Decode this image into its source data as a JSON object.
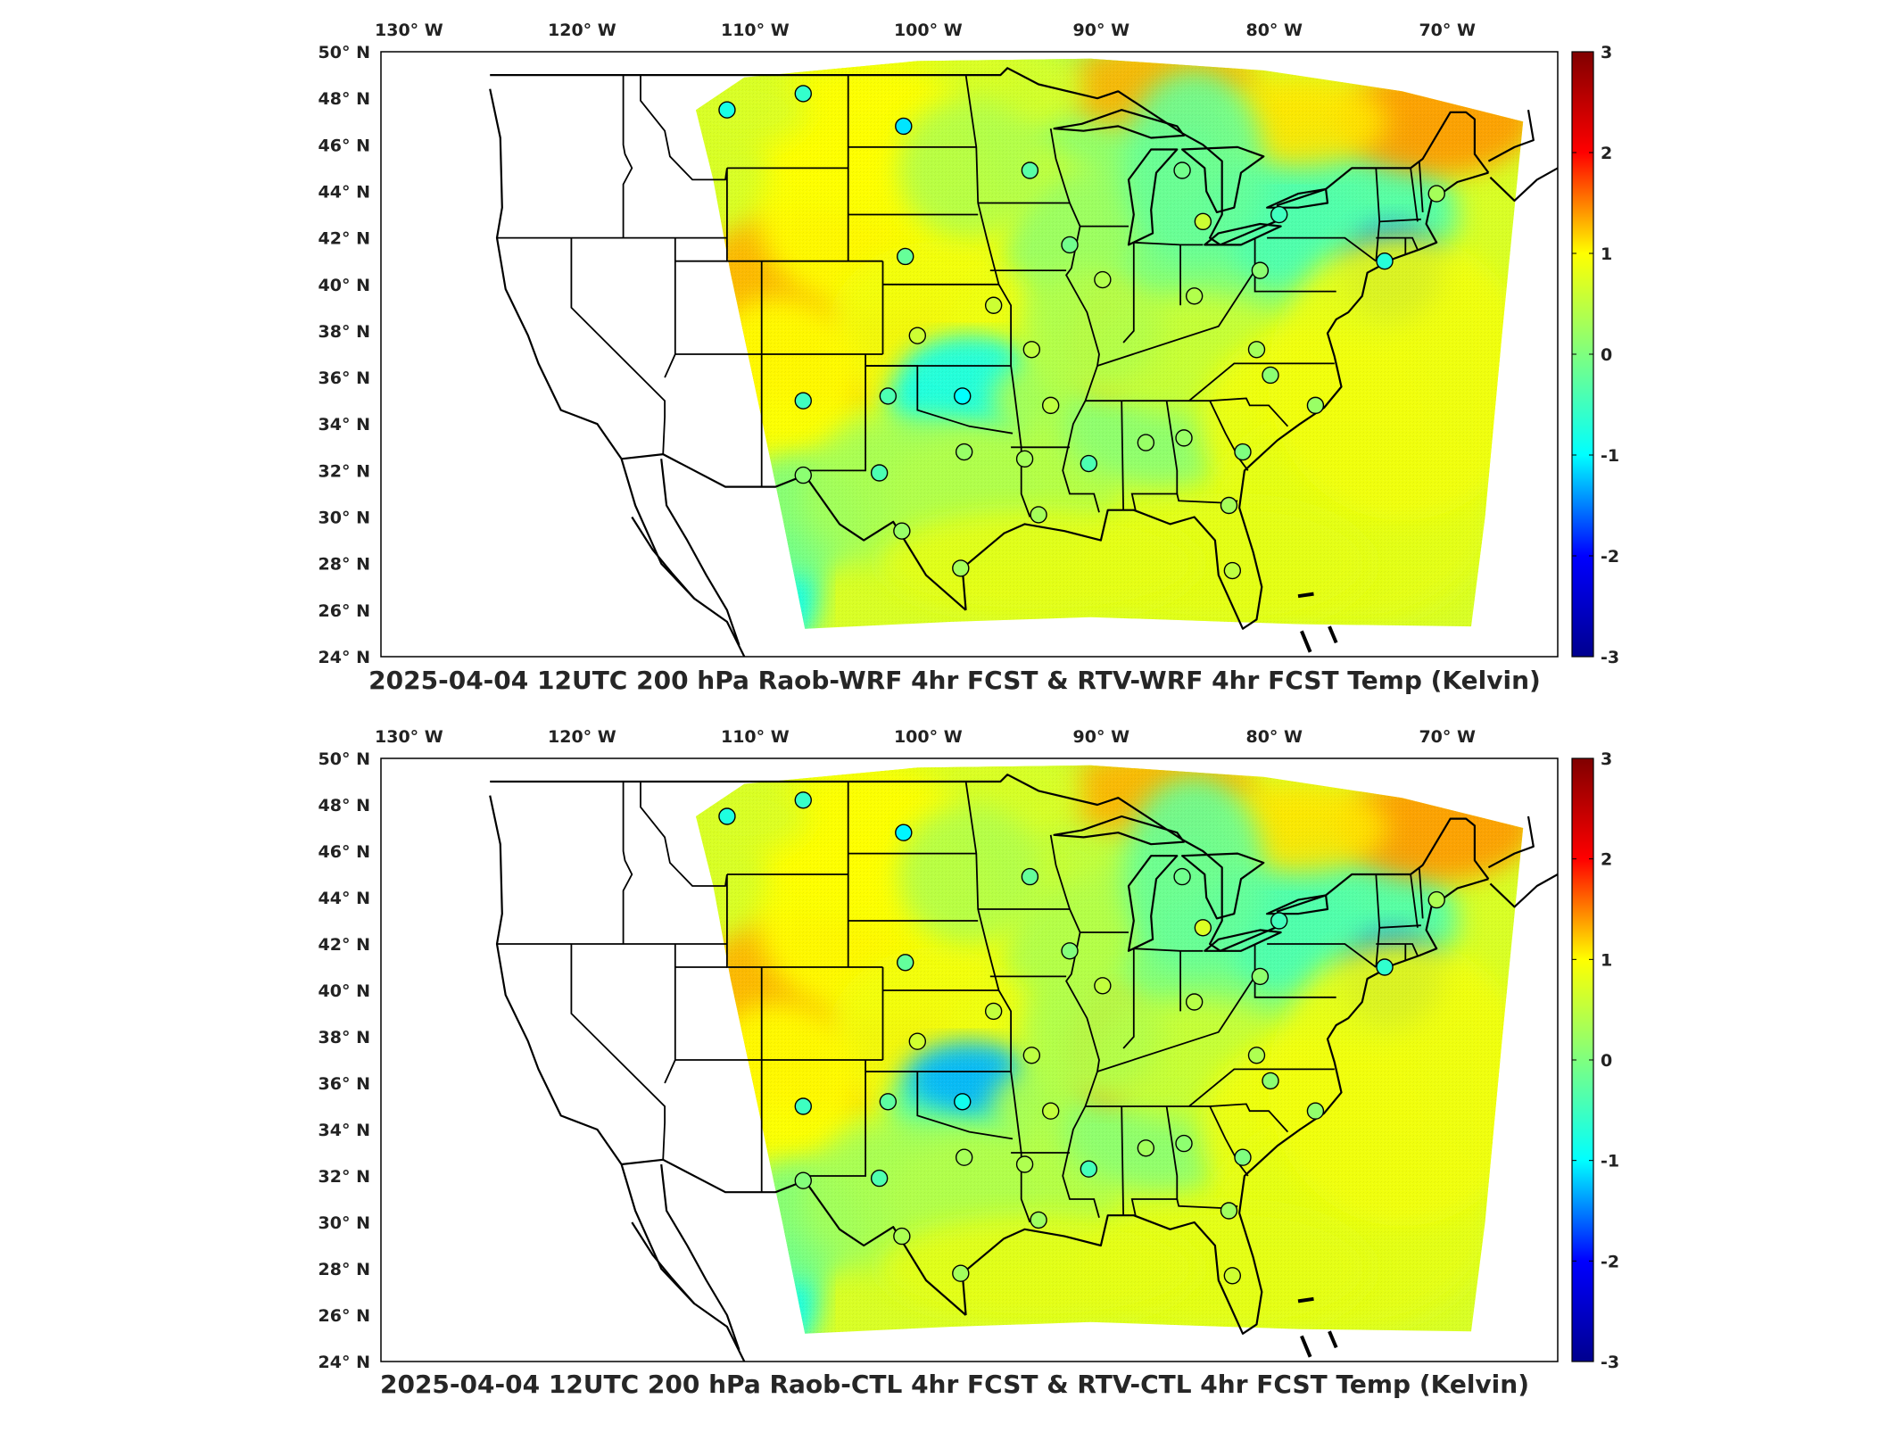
{
  "panels": [
    {
      "title": "2025-04-04 12UTC 200 hPa Raob-WRF 4hr FCST & RTV-WRF 4hr FCST Temp (Kelvin)",
      "variant": "wrf"
    },
    {
      "title": "2025-04-04 12UTC 200 hPa Raob-CTL 4hr FCST & RTV-CTL 4hr FCST Temp (Kelvin)",
      "variant": "ctl"
    }
  ],
  "axes": {
    "lon_labels": [
      "130° W",
      "120° W",
      "110° W",
      "100° W",
      "90° W",
      "80° W",
      "70° W"
    ],
    "lon_values": [
      -130,
      -120,
      -110,
      -100,
      -90,
      -80,
      -70
    ],
    "lat_labels": [
      "50° N",
      "48° N",
      "46° N",
      "44° N",
      "42° N",
      "40° N",
      "38° N",
      "36° N",
      "34° N",
      "32° N",
      "30° N",
      "28° N",
      "26° N",
      "24° N"
    ],
    "lat_values": [
      50,
      48,
      46,
      44,
      42,
      40,
      38,
      36,
      34,
      32,
      30,
      28,
      26,
      24
    ],
    "lon_range": [
      -131,
      -63
    ],
    "lat_range": [
      24,
      50
    ]
  },
  "colorbar": {
    "ticks": [
      "3",
      "2",
      "1",
      "0",
      "-1",
      "-2",
      "-3"
    ],
    "range": [
      -3,
      3
    ],
    "colormap": "jet",
    "stops": [
      "#00008f",
      "#0000ff",
      "#00ffff",
      "#7fff7f",
      "#ffff00",
      "#ff0000",
      "#800000"
    ]
  },
  "stations": [
    {
      "lon": -111.0,
      "lat": 47.5,
      "v": -0.8
    },
    {
      "lon": -106.6,
      "lat": 48.2,
      "v": -0.6
    },
    {
      "lon": -100.8,
      "lat": 46.8,
      "v": -1.1
    },
    {
      "lon": -93.5,
      "lat": 44.9,
      "v": -0.3
    },
    {
      "lon": -84.7,
      "lat": 44.9,
      "v": -0.1
    },
    {
      "lon": -83.5,
      "lat": 42.7,
      "v": 0.6
    },
    {
      "lon": -79.1,
      "lat": 43.0,
      "v": -0.5
    },
    {
      "lon": -70.0,
      "lat": 43.9,
      "v": 0.3
    },
    {
      "lon": -91.2,
      "lat": 41.7,
      "v": -0.1
    },
    {
      "lon": -100.7,
      "lat": 41.2,
      "v": -0.2
    },
    {
      "lon": -89.3,
      "lat": 40.2,
      "v": 0.4
    },
    {
      "lon": -84.0,
      "lat": 39.5,
      "v": 0.4
    },
    {
      "lon": -80.2,
      "lat": 40.6,
      "v": 0.1
    },
    {
      "lon": -73.0,
      "lat": 41.0,
      "v": -0.7
    },
    {
      "lon": -95.6,
      "lat": 39.1,
      "v": 0.6
    },
    {
      "lon": -100.0,
      "lat": 37.8,
      "v": 0.6
    },
    {
      "lon": -93.4,
      "lat": 37.2,
      "v": 0.5
    },
    {
      "lon": -80.4,
      "lat": 37.2,
      "v": 0.3
    },
    {
      "lon": -106.6,
      "lat": 35.0,
      "v": -0.5
    },
    {
      "lon": -101.7,
      "lat": 35.2,
      "v": -0.4
    },
    {
      "lon": -97.4,
      "lat": 35.2,
      "v": -1.0
    },
    {
      "lon": -92.3,
      "lat": 34.8,
      "v": 0.5
    },
    {
      "lon": -79.6,
      "lat": 36.1,
      "v": 0.1
    },
    {
      "lon": -77.0,
      "lat": 34.8,
      "v": 0.2
    },
    {
      "lon": -97.3,
      "lat": 32.8,
      "v": 0.2
    },
    {
      "lon": -93.8,
      "lat": 32.5,
      "v": 0.3
    },
    {
      "lon": -90.1,
      "lat": 32.3,
      "v": -0.4
    },
    {
      "lon": -86.8,
      "lat": 33.2,
      "v": 0.2
    },
    {
      "lon": -84.6,
      "lat": 33.4,
      "v": 0.2
    },
    {
      "lon": -81.2,
      "lat": 32.8,
      "v": 0.0
    },
    {
      "lon": -106.6,
      "lat": 31.8,
      "v": 0.1
    },
    {
      "lon": -102.2,
      "lat": 31.9,
      "v": -0.4
    },
    {
      "lon": -100.9,
      "lat": 29.4,
      "v": 0.2
    },
    {
      "lon": -97.5,
      "lat": 27.8,
      "v": 0.3
    },
    {
      "lon": -93.0,
      "lat": 30.1,
      "v": 0.3
    },
    {
      "lon": -82.0,
      "lat": 30.5,
      "v": 0.3
    },
    {
      "lon": -81.8,
      "lat": 27.7,
      "v": 0.5
    }
  ]
}
